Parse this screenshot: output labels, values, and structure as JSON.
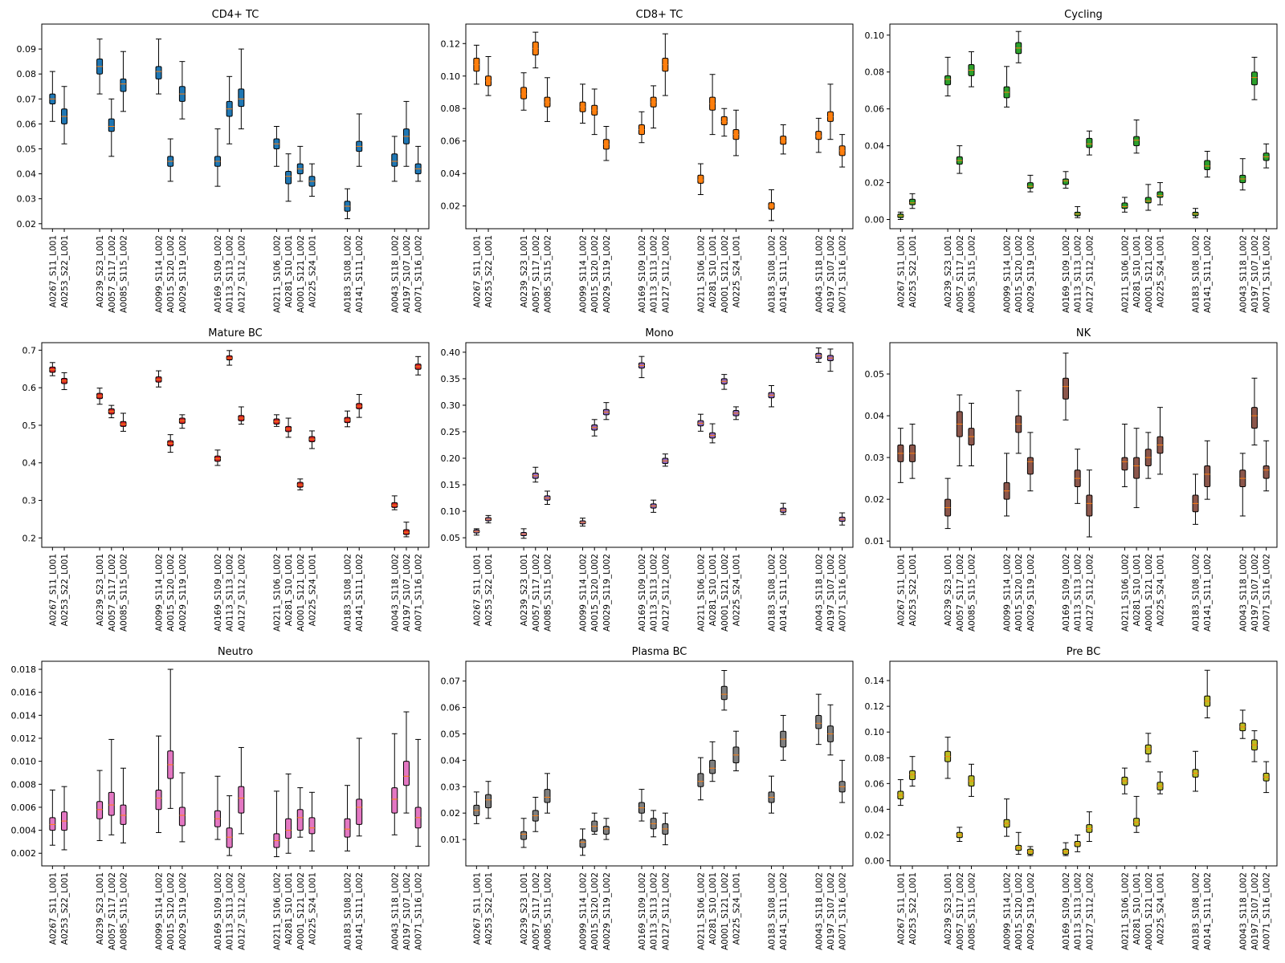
{
  "samples": [
    "A0267_S11_L001",
    "A0253_S22_L001",
    "A0239_S23_L001",
    "A0057_S117_L002",
    "A0085_S115_L002",
    "A0099_S114_L002",
    "A0015_S120_L002",
    "A0029_S119_L002",
    "A0169_S109_L002",
    "A0113_S113_L002",
    "A0127_S112_L002",
    "A0211_S106_L002",
    "A0281_S10_L001",
    "A0001_S121_L002",
    "A0225_S24_L001",
    "A0183_S108_L002",
    "A0141_S111_L002",
    "A0043_S118_L002",
    "A0197_S107_L002",
    "A0071_S116_L002"
  ],
  "groups": [
    [
      0,
      1
    ],
    [
      2,
      3,
      4
    ],
    [
      5,
      6,
      7
    ],
    [
      8,
      9,
      10
    ],
    [
      11,
      12,
      13,
      14
    ],
    [
      15,
      16
    ],
    [
      17,
      18,
      19
    ]
  ],
  "chart_data": [
    {
      "type": "box",
      "title": "CD4+ TC",
      "color": "#1f77b4",
      "ylim": [
        0.018,
        0.1
      ],
      "yticks": [
        0.02,
        0.03,
        0.04,
        0.05,
        0.06,
        0.07,
        0.08,
        0.09
      ],
      "tickfmt": 2,
      "median": [
        0.07,
        0.063,
        0.083,
        0.059,
        0.076,
        0.081,
        0.045,
        0.072,
        0.045,
        0.066,
        0.07,
        0.052,
        0.039,
        0.042,
        0.037,
        0.027,
        0.051,
        0.045,
        0.055,
        0.042
      ],
      "q1": [
        0.068,
        0.06,
        0.08,
        0.057,
        0.073,
        0.078,
        0.043,
        0.069,
        0.043,
        0.063,
        0.067,
        0.05,
        0.036,
        0.04,
        0.035,
        0.025,
        0.049,
        0.043,
        0.052,
        0.04
      ],
      "q3": [
        0.072,
        0.066,
        0.086,
        0.062,
        0.078,
        0.083,
        0.047,
        0.075,
        0.047,
        0.069,
        0.074,
        0.054,
        0.041,
        0.044,
        0.039,
        0.029,
        0.053,
        0.048,
        0.058,
        0.044
      ],
      "lo": [
        0.061,
        0.052,
        0.072,
        0.047,
        0.065,
        0.072,
        0.037,
        0.062,
        0.035,
        0.052,
        0.058,
        0.043,
        0.029,
        0.037,
        0.031,
        0.022,
        0.043,
        0.037,
        0.043,
        0.037
      ],
      "hi": [
        0.081,
        0.075,
        0.094,
        0.07,
        0.089,
        0.094,
        0.054,
        0.085,
        0.058,
        0.079,
        0.09,
        0.059,
        0.048,
        0.051,
        0.044,
        0.034,
        0.064,
        0.055,
        0.069,
        0.051
      ]
    },
    {
      "type": "box",
      "title": "CD8+ TC",
      "color": "#ff7f0e",
      "ylim": [
        0.006,
        0.132
      ],
      "yticks": [
        0.02,
        0.04,
        0.06,
        0.08,
        0.1,
        0.12
      ],
      "tickfmt": 2,
      "median": [
        0.107,
        0.097,
        0.089,
        0.117,
        0.084,
        0.081,
        0.079,
        0.058,
        0.067,
        0.084,
        0.107,
        0.036,
        0.083,
        0.072,
        0.064,
        0.02,
        0.06,
        0.063,
        0.075,
        0.054
      ],
      "q1": [
        0.103,
        0.094,
        0.086,
        0.113,
        0.081,
        0.078,
        0.076,
        0.055,
        0.064,
        0.081,
        0.103,
        0.034,
        0.079,
        0.07,
        0.061,
        0.018,
        0.058,
        0.061,
        0.072,
        0.051
      ],
      "q3": [
        0.111,
        0.1,
        0.093,
        0.121,
        0.087,
        0.084,
        0.082,
        0.061,
        0.07,
        0.087,
        0.111,
        0.039,
        0.087,
        0.075,
        0.067,
        0.022,
        0.063,
        0.066,
        0.078,
        0.057
      ],
      "lo": [
        0.095,
        0.088,
        0.079,
        0.105,
        0.072,
        0.071,
        0.064,
        0.048,
        0.059,
        0.068,
        0.088,
        0.027,
        0.064,
        0.063,
        0.051,
        0.011,
        0.052,
        0.053,
        0.061,
        0.044
      ],
      "hi": [
        0.119,
        0.112,
        0.102,
        0.127,
        0.099,
        0.095,
        0.092,
        0.069,
        0.078,
        0.094,
        0.126,
        0.046,
        0.101,
        0.08,
        0.079,
        0.03,
        0.07,
        0.074,
        0.095,
        0.064
      ]
    },
    {
      "type": "box",
      "title": "Cycling",
      "color": "#2ca02c",
      "ylim": [
        -0.005,
        0.106
      ],
      "yticks": [
        0.0,
        0.02,
        0.04,
        0.06,
        0.08,
        0.1
      ],
      "tickfmt": 2,
      "median": [
        0.002,
        0.009,
        0.076,
        0.032,
        0.081,
        0.069,
        0.093,
        0.018,
        0.021,
        0.003,
        0.041,
        0.007,
        0.043,
        0.01,
        0.013,
        0.003,
        0.029,
        0.022,
        0.077,
        0.034
      ],
      "q1": [
        0.001,
        0.008,
        0.073,
        0.03,
        0.078,
        0.066,
        0.09,
        0.017,
        0.019,
        0.002,
        0.039,
        0.006,
        0.04,
        0.009,
        0.012,
        0.002,
        0.027,
        0.02,
        0.073,
        0.032
      ],
      "q3": [
        0.003,
        0.011,
        0.078,
        0.034,
        0.084,
        0.072,
        0.096,
        0.02,
        0.022,
        0.004,
        0.044,
        0.009,
        0.045,
        0.012,
        0.015,
        0.004,
        0.032,
        0.024,
        0.08,
        0.036
      ],
      "lo": [
        0.0,
        0.006,
        0.067,
        0.025,
        0.072,
        0.061,
        0.085,
        0.015,
        0.017,
        0.001,
        0.035,
        0.004,
        0.036,
        0.005,
        0.008,
        0.001,
        0.023,
        0.016,
        0.065,
        0.028
      ],
      "hi": [
        0.004,
        0.014,
        0.088,
        0.04,
        0.091,
        0.083,
        0.102,
        0.024,
        0.026,
        0.007,
        0.048,
        0.012,
        0.054,
        0.019,
        0.02,
        0.006,
        0.037,
        0.033,
        0.088,
        0.041
      ]
    },
    {
      "type": "box",
      "title": "Mature BC",
      "color": "#d62728",
      "ylim": [
        0.175,
        0.72
      ],
      "yticks": [
        0.2,
        0.3,
        0.4,
        0.5,
        0.6,
        0.7
      ],
      "tickfmt": 1,
      "median": [
        0.648,
        0.618,
        0.578,
        0.537,
        0.503,
        0.622,
        0.452,
        0.512,
        0.411,
        0.679,
        0.519,
        0.51,
        0.49,
        0.341,
        0.463,
        0.514,
        0.551,
        0.287,
        0.215,
        0.656
      ],
      "q1": [
        0.641,
        0.611,
        0.571,
        0.53,
        0.497,
        0.615,
        0.445,
        0.505,
        0.404,
        0.674,
        0.512,
        0.503,
        0.483,
        0.335,
        0.456,
        0.507,
        0.544,
        0.281,
        0.209,
        0.649
      ],
      "q3": [
        0.655,
        0.625,
        0.585,
        0.544,
        0.51,
        0.629,
        0.459,
        0.519,
        0.418,
        0.685,
        0.526,
        0.517,
        0.497,
        0.348,
        0.47,
        0.521,
        0.558,
        0.294,
        0.222,
        0.663
      ],
      "lo": [
        0.632,
        0.595,
        0.556,
        0.52,
        0.484,
        0.602,
        0.428,
        0.492,
        0.393,
        0.66,
        0.503,
        0.497,
        0.468,
        0.328,
        0.438,
        0.496,
        0.521,
        0.275,
        0.203,
        0.634
      ],
      "hi": [
        0.667,
        0.64,
        0.599,
        0.553,
        0.532,
        0.645,
        0.475,
        0.528,
        0.434,
        0.699,
        0.549,
        0.528,
        0.519,
        0.357,
        0.485,
        0.538,
        0.582,
        0.312,
        0.242,
        0.683
      ]
    },
    {
      "type": "box",
      "title": "Mono",
      "color": "#9467bd",
      "ylim": [
        0.032,
        0.418
      ],
      "yticks": [
        0.05,
        0.1,
        0.15,
        0.2,
        0.25,
        0.3,
        0.35,
        0.4
      ],
      "tickfmt": 2,
      "median": [
        0.062,
        0.085,
        0.057,
        0.167,
        0.125,
        0.079,
        0.258,
        0.287,
        0.375,
        0.11,
        0.195,
        0.266,
        0.243,
        0.345,
        0.285,
        0.319,
        0.102,
        0.393,
        0.389,
        0.085
      ],
      "q1": [
        0.059,
        0.082,
        0.054,
        0.162,
        0.121,
        0.076,
        0.253,
        0.282,
        0.37,
        0.106,
        0.19,
        0.261,
        0.238,
        0.34,
        0.28,
        0.314,
        0.098,
        0.388,
        0.384,
        0.081
      ],
      "q3": [
        0.065,
        0.088,
        0.06,
        0.172,
        0.129,
        0.082,
        0.263,
        0.292,
        0.38,
        0.114,
        0.2,
        0.271,
        0.248,
        0.35,
        0.29,
        0.324,
        0.106,
        0.398,
        0.394,
        0.089
      ],
      "lo": [
        0.055,
        0.078,
        0.049,
        0.155,
        0.113,
        0.072,
        0.242,
        0.273,
        0.352,
        0.098,
        0.185,
        0.251,
        0.229,
        0.33,
        0.273,
        0.297,
        0.094,
        0.381,
        0.364,
        0.074
      ],
      "hi": [
        0.067,
        0.092,
        0.067,
        0.183,
        0.138,
        0.087,
        0.273,
        0.305,
        0.392,
        0.121,
        0.208,
        0.283,
        0.265,
        0.358,
        0.297,
        0.337,
        0.115,
        0.408,
        0.406,
        0.097
      ]
    },
    {
      "type": "box",
      "title": "NK",
      "color": "#8c564b",
      "ylim": [
        0.0085,
        0.0575
      ],
      "yticks": [
        0.01,
        0.02,
        0.03,
        0.04,
        0.05
      ],
      "tickfmt": 2,
      "median": [
        0.031,
        0.031,
        0.018,
        0.038,
        0.035,
        0.022,
        0.038,
        0.029,
        0.047,
        0.025,
        0.019,
        0.029,
        0.028,
        0.03,
        0.033,
        0.019,
        0.026,
        0.025,
        0.04,
        0.027
      ],
      "q1": [
        0.029,
        0.029,
        0.016,
        0.035,
        0.033,
        0.02,
        0.036,
        0.026,
        0.044,
        0.023,
        0.016,
        0.027,
        0.025,
        0.028,
        0.031,
        0.017,
        0.023,
        0.023,
        0.037,
        0.025
      ],
      "q3": [
        0.033,
        0.033,
        0.02,
        0.041,
        0.037,
        0.024,
        0.04,
        0.03,
        0.049,
        0.027,
        0.021,
        0.03,
        0.03,
        0.032,
        0.035,
        0.021,
        0.028,
        0.027,
        0.042,
        0.028
      ],
      "lo": [
        0.024,
        0.025,
        0.013,
        0.028,
        0.028,
        0.016,
        0.031,
        0.022,
        0.039,
        0.019,
        0.011,
        0.023,
        0.018,
        0.025,
        0.026,
        0.014,
        0.02,
        0.016,
        0.033,
        0.022
      ],
      "hi": [
        0.037,
        0.038,
        0.025,
        0.045,
        0.043,
        0.031,
        0.046,
        0.036,
        0.055,
        0.032,
        0.027,
        0.038,
        0.037,
        0.036,
        0.042,
        0.026,
        0.034,
        0.031,
        0.049,
        0.034
      ]
    },
    {
      "type": "box",
      "title": "Neutro",
      "color": "#e377c2",
      "ylim": [
        0.0009,
        0.0187
      ],
      "yticks": [
        0.002,
        0.004,
        0.006,
        0.008,
        0.01,
        0.012,
        0.014,
        0.016,
        0.018
      ],
      "tickfmt": 3,
      "median": [
        0.0045,
        0.0048,
        0.0058,
        0.0062,
        0.0053,
        0.0068,
        0.0097,
        0.0053,
        0.005,
        0.0034,
        0.0068,
        0.0031,
        0.004,
        0.0051,
        0.0042,
        0.0041,
        0.006,
        0.0067,
        0.0087,
        0.0051
      ],
      "q1": [
        0.004,
        0.004,
        0.005,
        0.0053,
        0.0045,
        0.0058,
        0.0085,
        0.0044,
        0.0043,
        0.0025,
        0.0055,
        0.0025,
        0.0033,
        0.004,
        0.0037,
        0.0034,
        0.0045,
        0.0055,
        0.0079,
        0.0042
      ],
      "q3": [
        0.0051,
        0.0056,
        0.0065,
        0.0073,
        0.0062,
        0.0075,
        0.0109,
        0.006,
        0.0057,
        0.0042,
        0.0078,
        0.0037,
        0.005,
        0.0058,
        0.0051,
        0.005,
        0.0067,
        0.0077,
        0.01,
        0.006
      ],
      "lo": [
        0.0027,
        0.0023,
        0.0031,
        0.0036,
        0.0029,
        0.0038,
        0.0059,
        0.003,
        0.0032,
        0.0018,
        0.0037,
        0.0017,
        0.002,
        0.0034,
        0.0022,
        0.0022,
        0.0035,
        0.0036,
        0.0055,
        0.0026
      ],
      "hi": [
        0.0075,
        0.0078,
        0.0092,
        0.0119,
        0.0094,
        0.0122,
        0.018,
        0.009,
        0.0087,
        0.007,
        0.0112,
        0.0074,
        0.0089,
        0.0077,
        0.0073,
        0.0079,
        0.012,
        0.0124,
        0.0143,
        0.0119
      ]
    },
    {
      "type": "box",
      "title": "Plasma BC",
      "color": "#7f7f7f",
      "ylim": [
        0.0,
        0.0775
      ],
      "yticks": [
        0.01,
        0.02,
        0.03,
        0.04,
        0.05,
        0.06,
        0.07
      ],
      "tickfmt": 2,
      "median": [
        0.021,
        0.025,
        0.012,
        0.019,
        0.026,
        0.009,
        0.015,
        0.014,
        0.022,
        0.016,
        0.014,
        0.032,
        0.037,
        0.065,
        0.042,
        0.026,
        0.048,
        0.054,
        0.05,
        0.03
      ],
      "q1": [
        0.019,
        0.022,
        0.01,
        0.017,
        0.024,
        0.007,
        0.013,
        0.012,
        0.02,
        0.014,
        0.012,
        0.03,
        0.035,
        0.063,
        0.039,
        0.024,
        0.045,
        0.052,
        0.047,
        0.028
      ],
      "q3": [
        0.023,
        0.027,
        0.013,
        0.021,
        0.029,
        0.01,
        0.017,
        0.015,
        0.024,
        0.018,
        0.016,
        0.035,
        0.04,
        0.068,
        0.045,
        0.028,
        0.051,
        0.057,
        0.053,
        0.032
      ],
      "lo": [
        0.016,
        0.018,
        0.007,
        0.013,
        0.02,
        0.004,
        0.012,
        0.01,
        0.017,
        0.011,
        0.008,
        0.025,
        0.032,
        0.059,
        0.036,
        0.02,
        0.04,
        0.046,
        0.042,
        0.024
      ],
      "hi": [
        0.028,
        0.032,
        0.018,
        0.026,
        0.035,
        0.014,
        0.02,
        0.018,
        0.029,
        0.021,
        0.02,
        0.041,
        0.047,
        0.074,
        0.051,
        0.034,
        0.057,
        0.065,
        0.061,
        0.04
      ]
    },
    {
      "type": "box",
      "title": "Pre BC",
      "color": "#bcbd22",
      "ylim": [
        -0.004,
        0.155
      ],
      "yticks": [
        0.0,
        0.02,
        0.04,
        0.06,
        0.08,
        0.1,
        0.12,
        0.14
      ],
      "tickfmt": 2,
      "median": [
        0.051,
        0.067,
        0.081,
        0.02,
        0.062,
        0.029,
        0.01,
        0.007,
        0.007,
        0.013,
        0.025,
        0.062,
        0.03,
        0.087,
        0.058,
        0.068,
        0.124,
        0.104,
        0.09,
        0.065
      ],
      "q1": [
        0.048,
        0.063,
        0.077,
        0.018,
        0.058,
        0.026,
        0.008,
        0.005,
        0.005,
        0.011,
        0.022,
        0.059,
        0.027,
        0.083,
        0.055,
        0.065,
        0.12,
        0.101,
        0.086,
        0.062
      ],
      "q3": [
        0.054,
        0.07,
        0.085,
        0.022,
        0.066,
        0.032,
        0.012,
        0.009,
        0.009,
        0.015,
        0.028,
        0.065,
        0.033,
        0.09,
        0.061,
        0.071,
        0.128,
        0.107,
        0.094,
        0.068
      ],
      "lo": [
        0.043,
        0.058,
        0.064,
        0.015,
        0.05,
        0.019,
        0.005,
        0.004,
        0.004,
        0.007,
        0.015,
        0.052,
        0.022,
        0.077,
        0.052,
        0.054,
        0.111,
        0.095,
        0.077,
        0.053
      ],
      "hi": [
        0.063,
        0.081,
        0.096,
        0.026,
        0.075,
        0.048,
        0.022,
        0.011,
        0.014,
        0.02,
        0.038,
        0.072,
        0.05,
        0.099,
        0.069,
        0.085,
        0.148,
        0.117,
        0.101,
        0.077
      ]
    }
  ]
}
